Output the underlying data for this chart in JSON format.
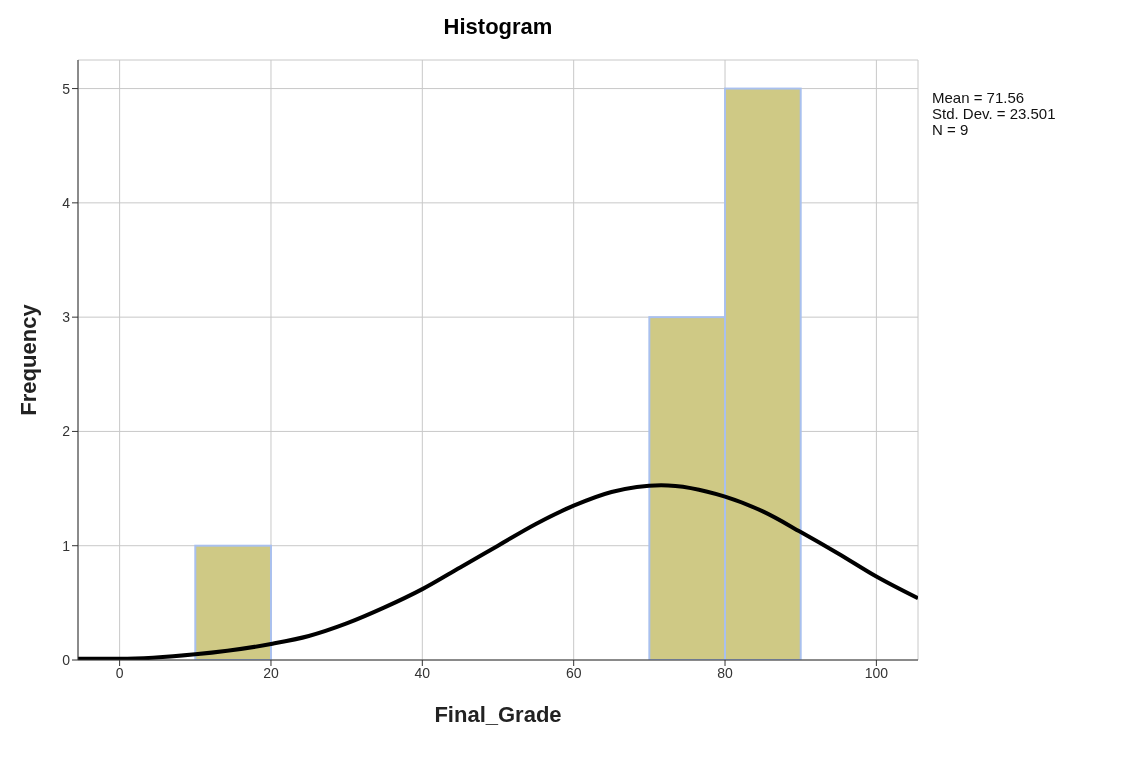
{
  "chart_data": {
    "type": "histogram",
    "title": "Histogram",
    "xlabel": "Final_Grade",
    "ylabel": "Frequency",
    "bins": [
      10,
      20,
      30,
      40,
      50,
      60,
      70,
      80,
      90
    ],
    "series": [
      {
        "color": "#cfc985",
        "values": [
          1,
          0,
          0,
          0,
          0,
          0,
          3,
          5
        ]
      },
      {
        "type": "line",
        "color": "#000000",
        "marker": "none",
        "x": [
          -5.5,
          0,
          10,
          20,
          25,
          30,
          35,
          40,
          45,
          50,
          55,
          60,
          65,
          71.56,
          80,
          85,
          90,
          95,
          100,
          105.5
        ],
        "values": [
          0.01,
          0.01,
          0.05,
          0.14,
          0.21,
          0.32,
          0.46,
          0.62,
          0.81,
          1.0,
          1.19,
          1.35,
          1.47,
          1.53,
          1.43,
          1.3,
          1.12,
          0.93,
          0.73,
          0.54
        ]
      }
    ],
    "xlim": [
      -5.5,
      105.5
    ],
    "xticks": [
      0,
      20,
      40,
      60,
      80,
      100
    ],
    "ylim": [
      0,
      5.25
    ],
    "yticks": [
      0,
      1,
      2,
      3,
      4,
      5
    ],
    "grid": true,
    "annotations": [
      "Mean = 71.56",
      "Std. Dev. = 23.501",
      "N = 9"
    ]
  }
}
